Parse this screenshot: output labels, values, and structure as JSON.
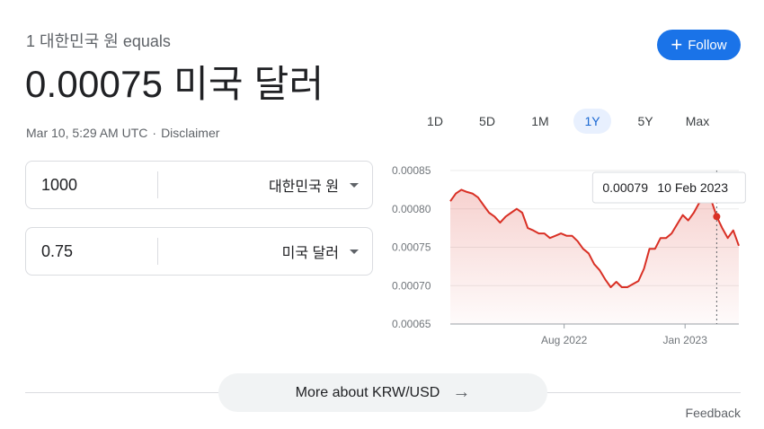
{
  "header": {
    "subtitle": "1 대한민국 원 equals",
    "rate": "0.00075 미국 달러",
    "timestamp": "Mar 10, 5:29 AM UTC",
    "separator": "·",
    "disclaimer": "Disclaimer",
    "follow_label": "Follow"
  },
  "converter": {
    "from": {
      "amount": "1000",
      "currency": "대한민국 원"
    },
    "to": {
      "amount": "0.75",
      "currency": "미국 달러"
    }
  },
  "ranges": [
    "1D",
    "5D",
    "1M",
    "1Y",
    "5Y",
    "Max"
  ],
  "active_range": "1Y",
  "tooltip": {
    "value": "0.00079",
    "date": "10 Feb 2023"
  },
  "more_label": "More about KRW/USD",
  "feedback_label": "Feedback",
  "colors": {
    "accent": "#1a73e8",
    "line": "#d93025"
  },
  "chart_data": {
    "type": "area",
    "ylim": [
      0.00065,
      0.00085
    ],
    "yticks": [
      0.00085,
      0.0008,
      0.00075,
      0.0007,
      0.00065
    ],
    "ytick_labels": [
      "0.00085",
      "0.00080",
      "0.00075",
      "0.00070",
      "0.00065"
    ],
    "xrange": [
      "2022-03-10",
      "2023-03-10"
    ],
    "xticks": [
      {
        "date": "2022-08-01",
        "label": "Aug 2022"
      },
      {
        "date": "2023-01-01",
        "label": "Jan 2023"
      }
    ],
    "points": [
      [
        "2022-03-10",
        0.00081
      ],
      [
        "2022-03-17",
        0.00082
      ],
      [
        "2022-03-24",
        0.000825
      ],
      [
        "2022-03-31",
        0.000822
      ],
      [
        "2022-04-07",
        0.00082
      ],
      [
        "2022-04-14",
        0.000815
      ],
      [
        "2022-04-21",
        0.000805
      ],
      [
        "2022-04-28",
        0.000795
      ],
      [
        "2022-05-05",
        0.00079
      ],
      [
        "2022-05-12",
        0.000782
      ],
      [
        "2022-05-19",
        0.00079
      ],
      [
        "2022-05-26",
        0.000795
      ],
      [
        "2022-06-02",
        0.0008
      ],
      [
        "2022-06-09",
        0.000795
      ],
      [
        "2022-06-16",
        0.000775
      ],
      [
        "2022-06-23",
        0.000772
      ],
      [
        "2022-06-30",
        0.000768
      ],
      [
        "2022-07-07",
        0.000768
      ],
      [
        "2022-07-14",
        0.000762
      ],
      [
        "2022-07-21",
        0.000765
      ],
      [
        "2022-07-28",
        0.000768
      ],
      [
        "2022-08-04",
        0.000765
      ],
      [
        "2022-08-11",
        0.000765
      ],
      [
        "2022-08-18",
        0.000758
      ],
      [
        "2022-08-25",
        0.000748
      ],
      [
        "2022-09-01",
        0.000742
      ],
      [
        "2022-09-08",
        0.000728
      ],
      [
        "2022-09-15",
        0.00072
      ],
      [
        "2022-09-22",
        0.000708
      ],
      [
        "2022-09-29",
        0.000698
      ],
      [
        "2022-10-06",
        0.000705
      ],
      [
        "2022-10-13",
        0.000698
      ],
      [
        "2022-10-20",
        0.000698
      ],
      [
        "2022-10-27",
        0.000702
      ],
      [
        "2022-11-03",
        0.000706
      ],
      [
        "2022-11-10",
        0.000722
      ],
      [
        "2022-11-17",
        0.000748
      ],
      [
        "2022-11-24",
        0.000748
      ],
      [
        "2022-12-01",
        0.000762
      ],
      [
        "2022-12-08",
        0.000762
      ],
      [
        "2022-12-15",
        0.000768
      ],
      [
        "2022-12-22",
        0.00078
      ],
      [
        "2022-12-29",
        0.000792
      ],
      [
        "2023-01-05",
        0.000785
      ],
      [
        "2023-01-12",
        0.000795
      ],
      [
        "2023-01-19",
        0.000808
      ],
      [
        "2023-01-26",
        0.00081
      ],
      [
        "2023-02-02",
        0.000815
      ],
      [
        "2023-02-10",
        0.00079
      ],
      [
        "2023-02-17",
        0.000775
      ],
      [
        "2023-02-24",
        0.000762
      ],
      [
        "2023-03-03",
        0.000772
      ],
      [
        "2023-03-10",
        0.000752
      ]
    ],
    "highlight": {
      "date": "2023-02-10",
      "value": 0.00079
    }
  }
}
